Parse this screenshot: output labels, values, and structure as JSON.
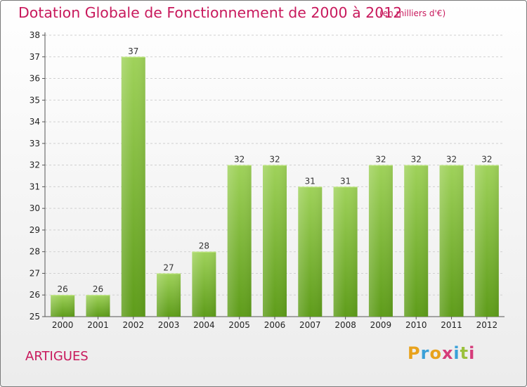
{
  "title": "Dotation Globale de Fonctionnement de 2000 à 2012",
  "subtitle": "(en milliers d'€)",
  "commune": "ARTIGUES",
  "brand": {
    "letters": [
      "P",
      "r",
      "o",
      "x",
      "i",
      "t",
      "i"
    ],
    "colors": [
      "#e8a21c",
      "#3aa0d8",
      "#e8a21c",
      "#d63c7a",
      "#3aa0d8",
      "#9bc13d",
      "#d63c7a"
    ]
  },
  "colors": {
    "accent": "#c8195c",
    "bar_top": "#9fd25a",
    "bar_bottom": "#5e9c1a",
    "grid": "#d0d0d0"
  },
  "chart_data": {
    "type": "bar",
    "title": "Dotation Globale de Fonctionnement de 2000 à 2012",
    "subtitle": "(en milliers d'€)",
    "categories": [
      "2000",
      "2001",
      "2002",
      "2003",
      "2004",
      "2005",
      "2006",
      "2007",
      "2008",
      "2009",
      "2010",
      "2011",
      "2012"
    ],
    "values": [
      26,
      26,
      37,
      27,
      28,
      32,
      32,
      31,
      31,
      32,
      32,
      32,
      32
    ],
    "value_labels": [
      "26",
      "26",
      "37",
      "27",
      "28",
      "32",
      "32",
      "31",
      "31",
      "32",
      "32",
      "32",
      "32"
    ],
    "yticks": [
      "25",
      "26",
      "27",
      "28",
      "29",
      "30",
      "31",
      "32",
      "33",
      "34",
      "35",
      "36",
      "37",
      "38"
    ],
    "ylim": [
      25,
      38
    ],
    "grid": true,
    "legend": "none"
  }
}
